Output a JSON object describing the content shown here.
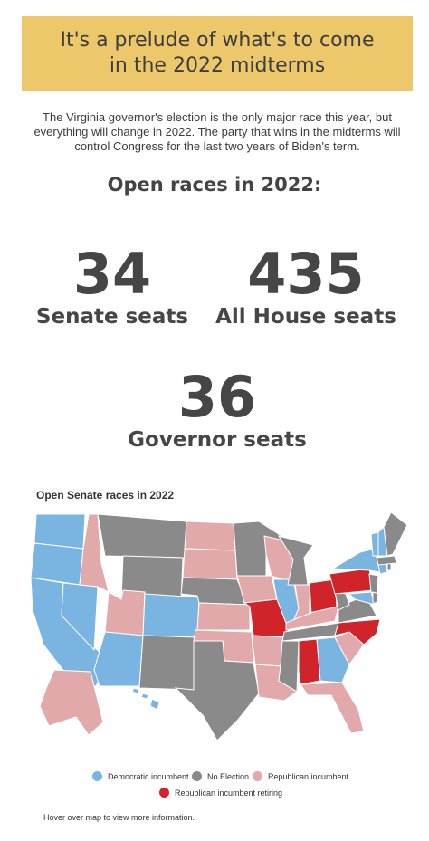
{
  "header": {
    "title": "It's a prelude of what's to come in the 2022 midterms"
  },
  "intro": "The Virginia governor's election is the only major race this year, but everything will change in 2022. The party that wins in the midterms will control Congress for the last two years of Biden's term.",
  "subhead": "Open races in 2022:",
  "stats": [
    {
      "number": "34",
      "label": "Senate seats"
    },
    {
      "number": "435",
      "label": "All House seats"
    },
    {
      "number": "36",
      "label": "Governor seats"
    }
  ],
  "map": {
    "title": "Open Senate races in 2022",
    "colors": {
      "dem": "#7ab4e0",
      "none": "#8a8a8a",
      "rep": "#e2a9ab",
      "retiring": "#d1232a"
    }
  },
  "legend": {
    "dem": "Democratic incumbent",
    "none": "No Election",
    "rep": "Republican incumbent",
    "retiring": "Republican incumbent retiring"
  },
  "footnote": "Hover over map to view more information."
}
